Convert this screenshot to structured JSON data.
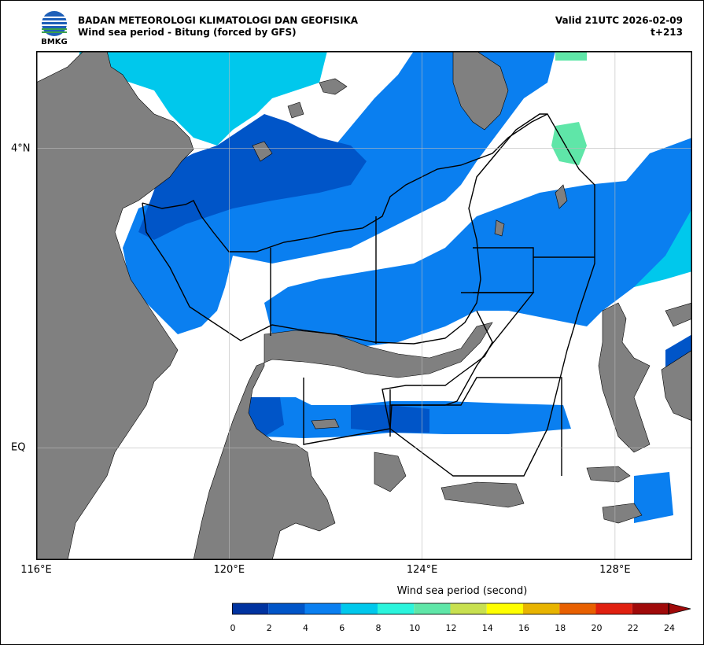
{
  "header": {
    "logo_text": "BMKG",
    "agency": "BADAN METEOROLOGI KLIMATOLOGI DAN GEOFISIKA",
    "subtitle": "Wind sea period - Bitung (forced by GFS)",
    "valid": "Valid 21UTC 2026-02-09",
    "lead": "t+213"
  },
  "map": {
    "lon_range": [
      116,
      129.6
    ],
    "lat_range": [
      -1.5,
      5.3
    ],
    "x_ticks": [
      {
        "value": 116,
        "label": "116°E"
      },
      {
        "value": 120,
        "label": "120°E"
      },
      {
        "value": 124,
        "label": "124°E"
      },
      {
        "value": 128,
        "label": "128°E"
      }
    ],
    "y_ticks": [
      {
        "value": 4,
        "label": "4°N"
      },
      {
        "value": 0,
        "label": "EQ"
      }
    ],
    "grid": true,
    "land_color": "#808080",
    "sea_color": "#ffffff"
  },
  "colorbar": {
    "title": "Wind sea period (second)",
    "bounds": [
      0,
      2,
      4,
      6,
      8,
      10,
      12,
      14,
      16,
      18,
      20,
      22,
      24
    ],
    "labels": [
      "0",
      "2",
      "4",
      "6",
      "8",
      "10",
      "12",
      "14",
      "16",
      "18",
      "20",
      "22",
      "24"
    ],
    "colors": [
      "#0033a0",
      "#0055c8",
      "#0a7ff0",
      "#00c8ec",
      "#2bf4dc",
      "#5fe6a8",
      "#c8e050",
      "#ffff00",
      "#e8b400",
      "#e86000",
      "#e02010",
      "#a00a0a"
    ],
    "extend": "max"
  }
}
